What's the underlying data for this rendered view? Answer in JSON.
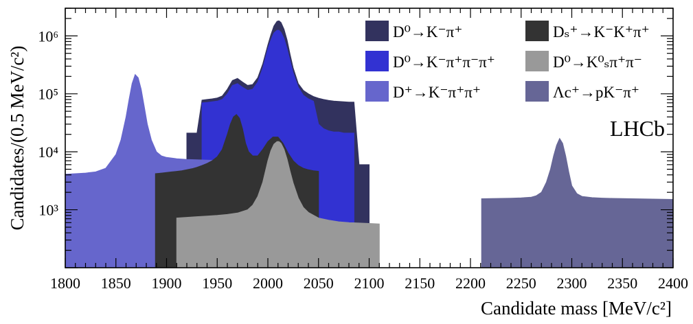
{
  "chart_data": {
    "type": "area",
    "xlabel": "Candidate mass [MeV/c²]",
    "ylabel": "Candidates/(0.5 MeV/c²)",
    "xlim": [
      1800,
      2400
    ],
    "ylim": [
      100,
      3000000
    ],
    "y_scale": "log",
    "x_ticks": [
      "1800",
      "1850",
      "1900",
      "1950",
      "2000",
      "2050",
      "2100",
      "2150",
      "2200",
      "2250",
      "2300",
      "2350",
      "2400"
    ],
    "y_ticks": [
      {
        "value": 1000,
        "label": "10³"
      },
      {
        "value": 10000,
        "label": "10⁴"
      },
      {
        "value": 100000,
        "label": "10⁵"
      },
      {
        "value": 1000000,
        "label": "10⁶"
      }
    ],
    "annotation": "LHCb",
    "legend_position": "top-right",
    "series": [
      {
        "name": "D⁰→K⁻π⁺",
        "color": "#32325e",
        "x": [
          1920,
          1925,
          1930,
          1935,
          1940,
          1945,
          1950,
          1955,
          1960,
          1965,
          1970,
          1975,
          1980,
          1985,
          1990,
          1995,
          2000,
          2003,
          2006,
          2009,
          2011,
          2013,
          2016,
          2019,
          2022,
          2025,
          2030,
          2035,
          2040,
          2045,
          2050,
          2055,
          2060,
          2065,
          2070,
          2075,
          2080,
          2085,
          2090,
          2095,
          2100
        ],
        "y": [
          21000,
          21000,
          21000,
          78000,
          80000,
          82000,
          85000,
          92000,
          120000,
          170000,
          185000,
          160000,
          140000,
          145000,
          190000,
          330000,
          700000,
          1050000,
          1480000,
          1780000,
          1820000,
          1700000,
          1300000,
          850000,
          480000,
          280000,
          150000,
          115000,
          100000,
          90000,
          84000,
          80000,
          77000,
          75000,
          74000,
          73000,
          72000,
          72000,
          6000,
          6000,
          6000
        ]
      },
      {
        "name": "D⁰→K⁻π⁺π⁻π⁺",
        "color": "#3232d2",
        "x": [
          1935,
          1940,
          1945,
          1950,
          1955,
          1960,
          1965,
          1970,
          1975,
          1980,
          1985,
          1990,
          1995,
          2000,
          2003,
          2006,
          2009,
          2011,
          2013,
          2016,
          2019,
          2022,
          2025,
          2030,
          2035,
          2040,
          2045,
          2050,
          2055,
          2060,
          2065,
          2070,
          2075,
          2080,
          2085
        ],
        "y": [
          70000,
          71000,
          73000,
          75000,
          80000,
          100000,
          140000,
          150000,
          130000,
          115000,
          120000,
          160000,
          280000,
          600000,
          850000,
          1120000,
          1250000,
          1250000,
          1150000,
          900000,
          600000,
          370000,
          230000,
          130000,
          95000,
          82000,
          75000,
          30000,
          25000,
          23000,
          22000,
          22000,
          21000,
          21000,
          21000
        ]
      },
      {
        "name": "D⁺→K⁻π⁺π⁺",
        "color": "#6666cc",
        "x": [
          1800,
          1810,
          1820,
          1830,
          1840,
          1850,
          1855,
          1860,
          1863,
          1866,
          1869,
          1872,
          1875,
          1878,
          1881,
          1885,
          1890,
          1895,
          1900,
          1910,
          1920,
          1930,
          1940,
          1950
        ],
        "y": [
          4100,
          4200,
          4300,
          4500,
          5200,
          9000,
          16000,
          40000,
          80000,
          150000,
          215000,
          190000,
          120000,
          60000,
          30000,
          16000,
          10000,
          8500,
          8000,
          7600,
          7400,
          7300,
          7200,
          7100
        ]
      },
      {
        "name": "Dₛ⁺→K⁻K⁺π⁺",
        "color": "#333333",
        "x": [
          1889,
          1895,
          1900,
          1905,
          1910,
          1915,
          1920,
          1925,
          1930,
          1935,
          1940,
          1945,
          1950,
          1955,
          1960,
          1963,
          1966,
          1969,
          1972,
          1975,
          1978,
          1981,
          1985,
          1990,
          1995,
          2000,
          2005,
          2010,
          2015,
          2020,
          2025,
          2030,
          2035,
          2040,
          2045,
          2050
        ],
        "y": [
          4200,
          4300,
          4400,
          4500,
          4600,
          4700,
          4900,
          5100,
          5400,
          5800,
          6300,
          7000,
          8200,
          11000,
          20000,
          30000,
          40000,
          44000,
          38000,
          25000,
          14000,
          10000,
          8500,
          8500,
          11000,
          15000,
          18000,
          18000,
          14000,
          9500,
          7000,
          5800,
          5200,
          4900,
          4700,
          4600
        ]
      },
      {
        "name": "D⁰→K⁰ₛπ⁺π⁻",
        "color": "#999999",
        "x": [
          1910,
          1920,
          1930,
          1940,
          1950,
          1960,
          1970,
          1980,
          1985,
          1990,
          1995,
          2000,
          2003,
          2006,
          2009,
          2011,
          2013,
          2016,
          2019,
          2022,
          2025,
          2030,
          2035,
          2040,
          2050,
          2060,
          2070,
          2080,
          2090,
          2100,
          2110
        ],
        "y": [
          720,
          740,
          760,
          780,
          800,
          830,
          880,
          1000,
          1200,
          1700,
          3000,
          7000,
          10500,
          13500,
          15000,
          15000,
          14000,
          11000,
          7500,
          4600,
          2900,
          1600,
          1100,
          900,
          720,
          660,
          620,
          600,
          590,
          580,
          570
        ]
      },
      {
        "name": "Λc⁺→pK⁻π⁺",
        "color": "#666696",
        "x": [
          2211,
          2220,
          2230,
          2240,
          2250,
          2260,
          2265,
          2270,
          2275,
          2279,
          2282,
          2285,
          2288,
          2291,
          2294,
          2297,
          2300,
          2305,
          2310,
          2320,
          2330,
          2340,
          2350,
          2360,
          2370,
          2380,
          2390,
          2400
        ],
        "y": [
          1550,
          1560,
          1570,
          1580,
          1600,
          1650,
          1750,
          2000,
          3000,
          5000,
          8500,
          13000,
          17000,
          14000,
          8500,
          4500,
          2600,
          1900,
          1700,
          1620,
          1590,
          1570,
          1560,
          1550,
          1540,
          1530,
          1520,
          1510
        ]
      }
    ]
  }
}
